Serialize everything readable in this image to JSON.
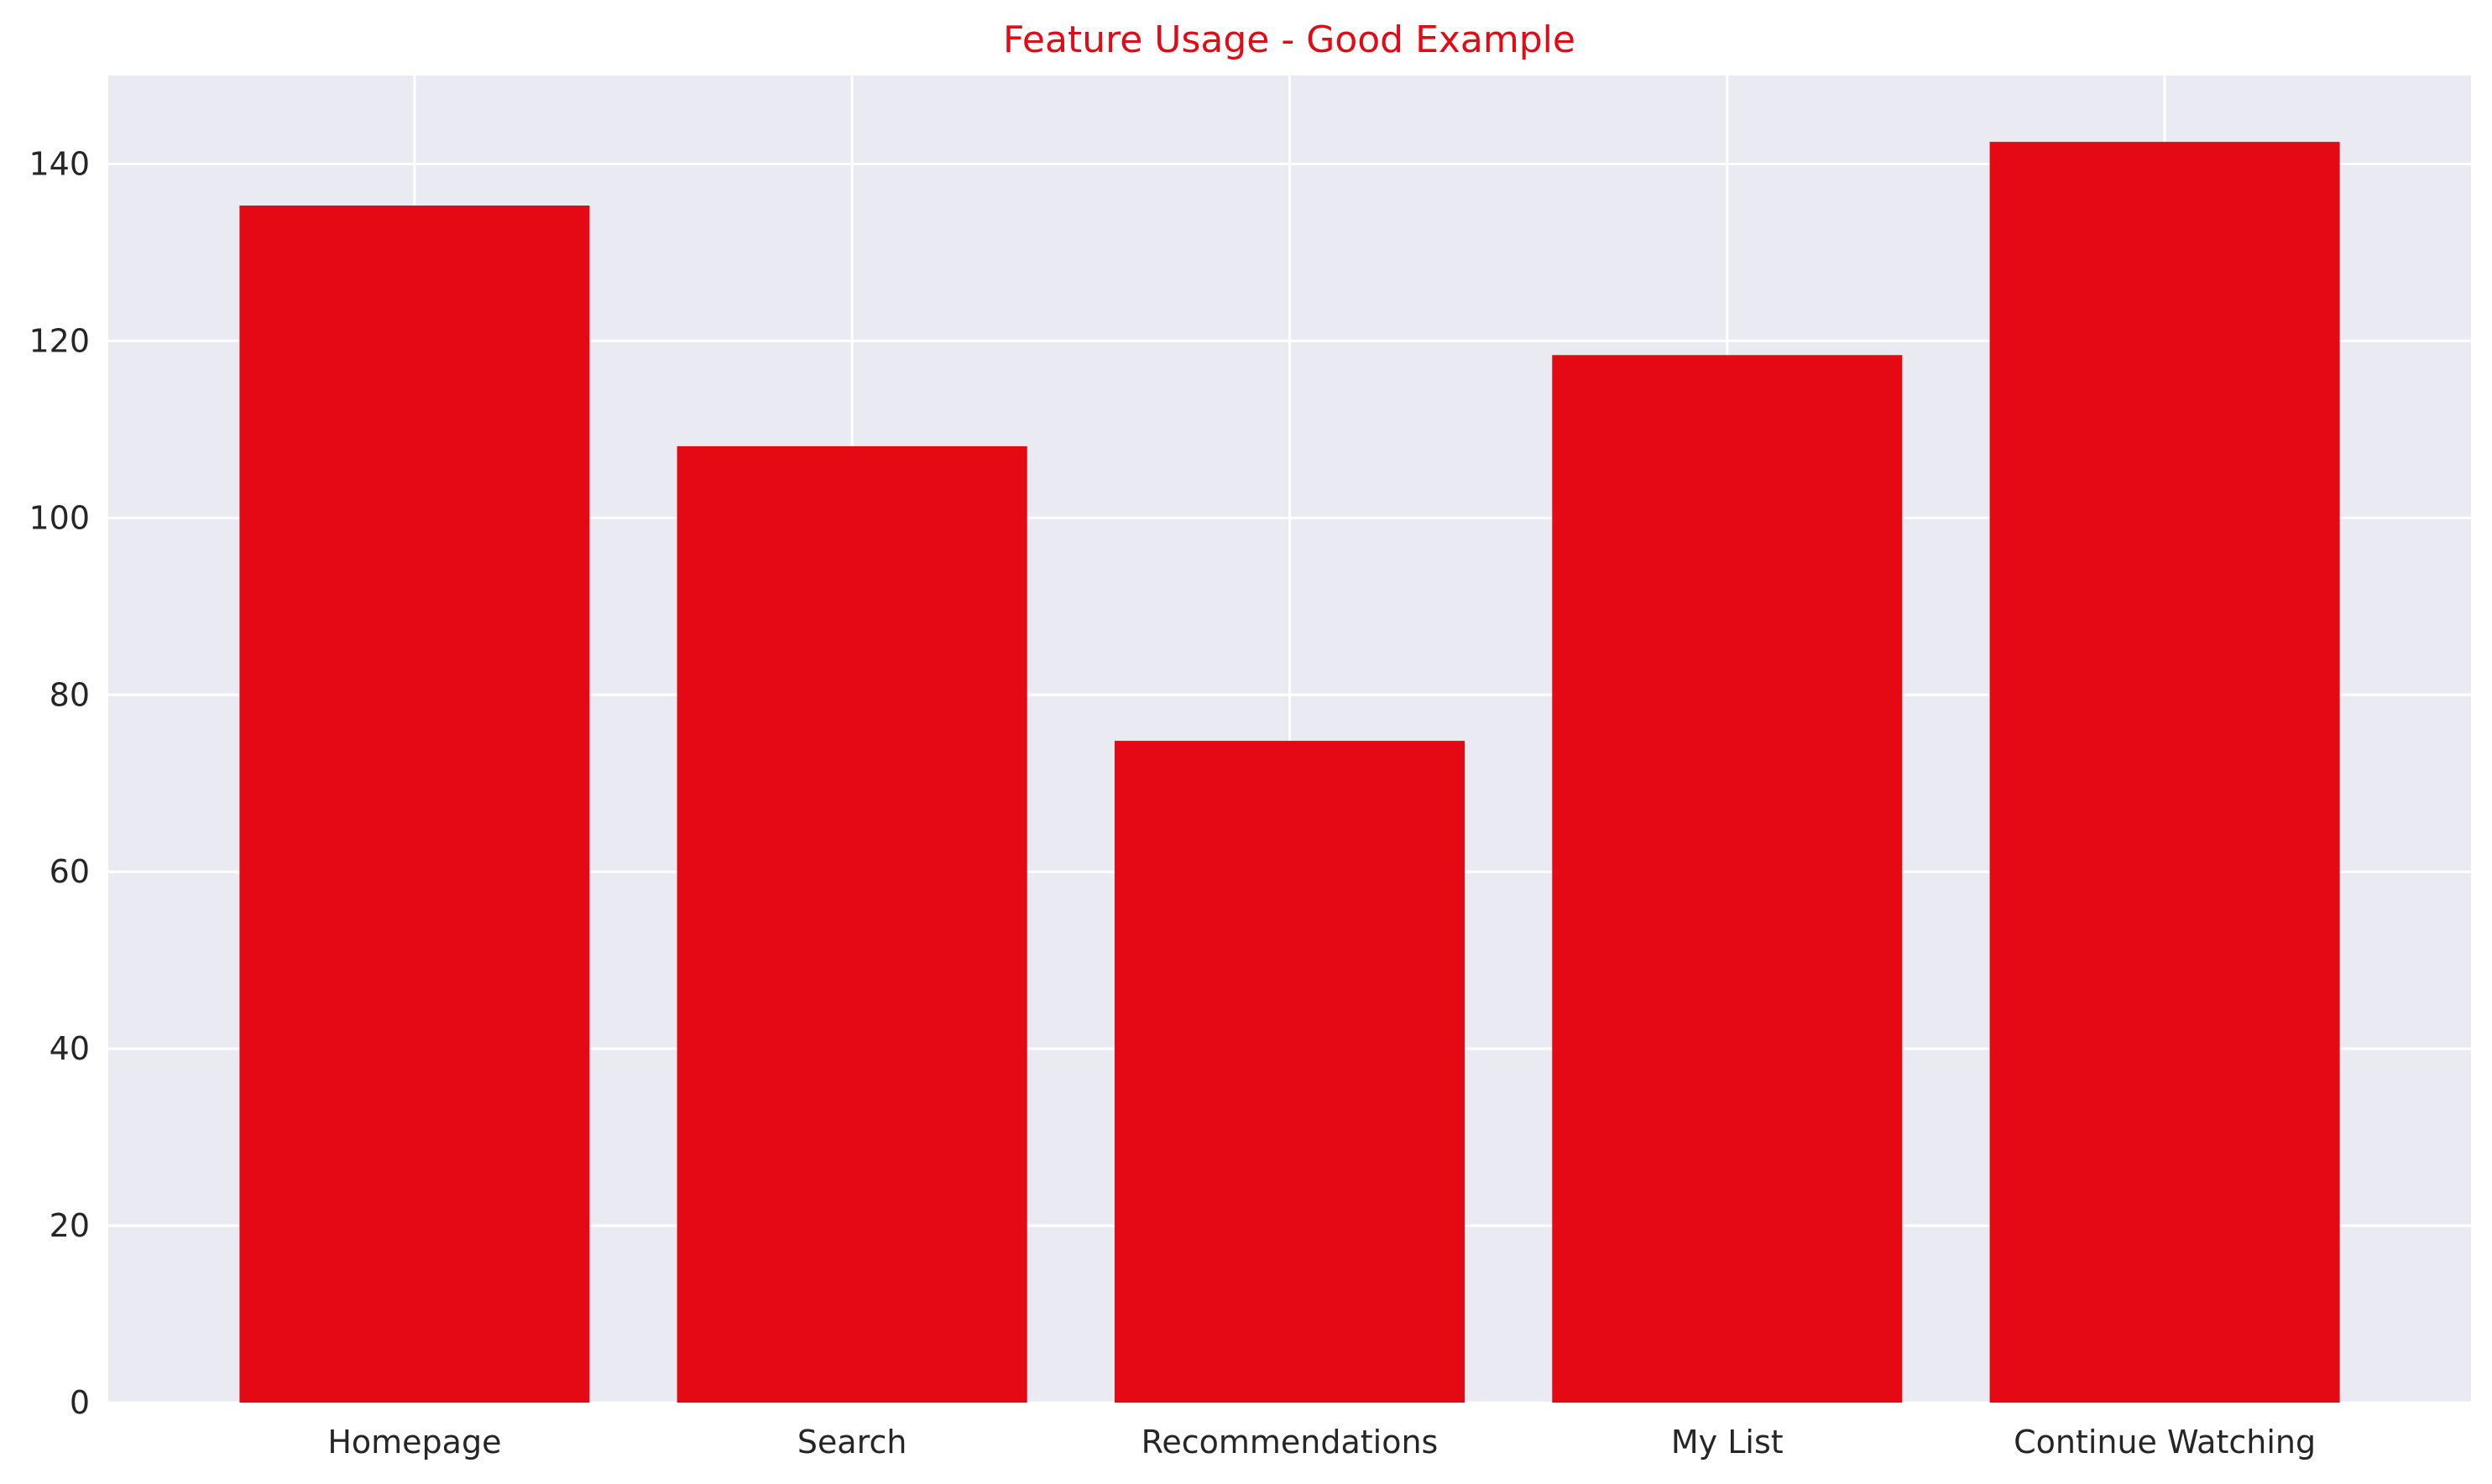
{
  "chart_data": {
    "type": "bar",
    "title": "Feature Usage - Good Example",
    "categories": [
      "Homepage",
      "Search",
      "Recommendations",
      "My List",
      "Continue Watching"
    ],
    "values": [
      135.3,
      108.1,
      74.8,
      118.4,
      142.5
    ],
    "xlabel": "",
    "ylabel": "",
    "ylim": [
      0,
      150
    ],
    "yticks": [
      0,
      20,
      40,
      60,
      80,
      100,
      120,
      140
    ],
    "grid": true,
    "legend": "none",
    "colors": {
      "bar": "#e50914",
      "title": "#e50914",
      "plot_background": "#eaeaf2",
      "grid": "#ffffff"
    }
  }
}
